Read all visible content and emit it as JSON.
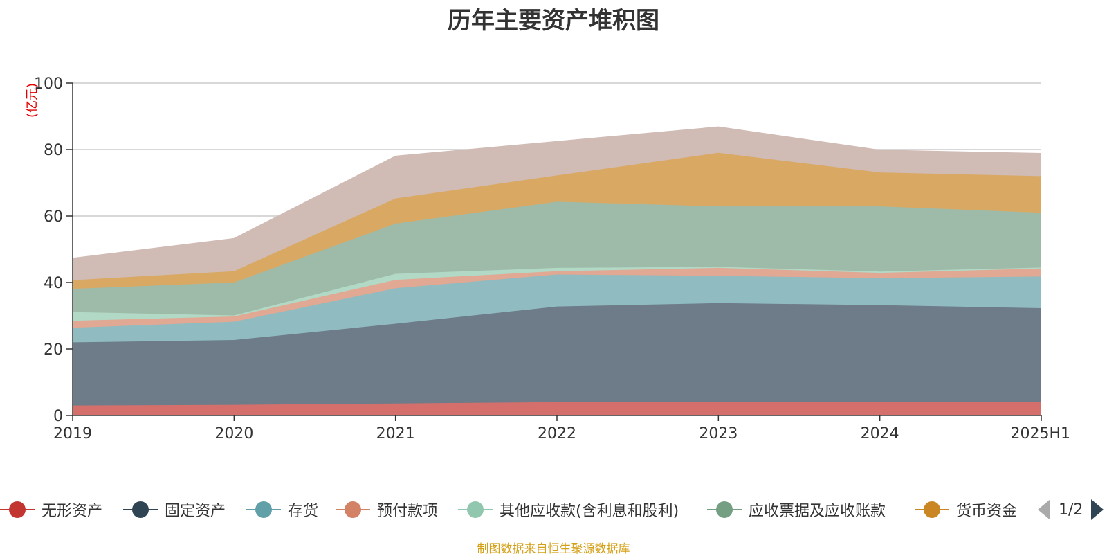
{
  "chart_data": {
    "type": "area",
    "stacked": true,
    "title": "历年主要资产堆积图",
    "yunit": "(亿元)",
    "categories": [
      "2019",
      "2020",
      "2021",
      "2022",
      "2023",
      "2024",
      "2025H1"
    ],
    "ylim": [
      0,
      100
    ],
    "yticks": [
      0,
      20,
      40,
      60,
      80,
      100
    ],
    "grid": true,
    "legend_position": "bottom",
    "legend_page": "1/2",
    "series": [
      {
        "name": "无形资产",
        "values": [
          3.0,
          3.2,
          3.6,
          4.0,
          4.0,
          4.0,
          4.0
        ],
        "line_color": "#c23531",
        "fill_color": "#d46f6c"
      },
      {
        "name": "固定资产",
        "values": [
          19.0,
          19.5,
          24.0,
          28.8,
          29.8,
          29.2,
          28.3
        ],
        "line_color": "#2f4554",
        "fill_color": "#6d7c88"
      },
      {
        "name": "存货",
        "values": [
          4.4,
          5.5,
          10.7,
          9.6,
          8.2,
          8.1,
          9.5
        ],
        "line_color": "#61a0a8",
        "fill_color": "#90bcc1"
      },
      {
        "name": "预付款项",
        "values": [
          2.1,
          1.6,
          2.5,
          1.0,
          2.4,
          1.6,
          2.4
        ],
        "line_color": "#d48265",
        "fill_color": "#e1a893"
      },
      {
        "name": "其他应收款(含利息和股利)",
        "values": [
          2.6,
          0.3,
          1.8,
          1.0,
          0.3,
          0.4,
          0.3
        ],
        "line_color": "#91c7ae",
        "fill_color": "#b2d8c6"
      },
      {
        "name": "应收票据及应收账款",
        "values": [
          7.0,
          9.9,
          15.1,
          19.9,
          18.2,
          19.6,
          16.5
        ],
        "line_color": "#749f83",
        "fill_color": "#9dbba8"
      },
      {
        "name": "货币资金",
        "values": [
          2.6,
          3.4,
          7.6,
          7.9,
          16.1,
          10.2,
          11.0
        ],
        "line_color": "#ca8622",
        "fill_color": "#d9a964"
      },
      {
        "name": "",
        "values": [
          6.6,
          9.8,
          12.7,
          10.2,
          7.8,
          6.7,
          6.8
        ],
        "line_color": "#bda29a",
        "fill_color": "#d0bbb5"
      }
    ]
  },
  "footer": {
    "source": "制图数据来自恒生聚源数据库"
  }
}
